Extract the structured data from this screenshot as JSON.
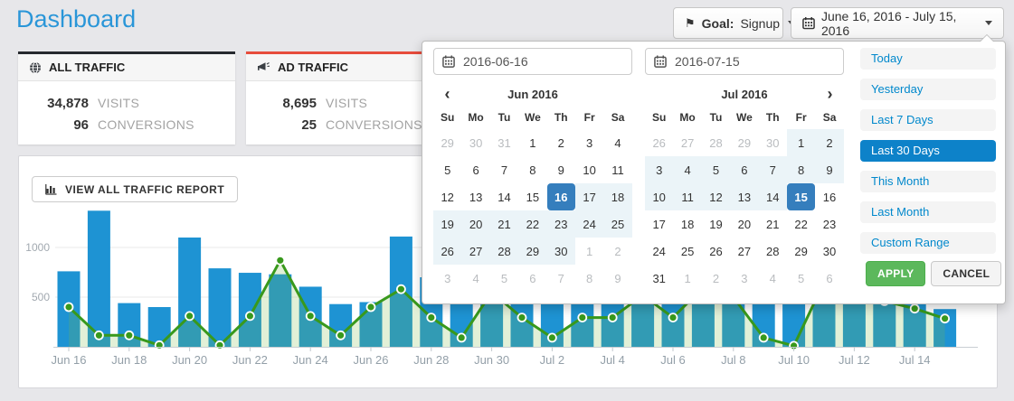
{
  "page": {
    "title": "Dashboard"
  },
  "toolbar": {
    "goal_label": "Goal:",
    "goal_value": "Signup",
    "date_range": "June 16, 2016 - July 15, 2016"
  },
  "icons": {
    "flag": "⚑",
    "prev_arrow": "‹",
    "next_arrow": "›"
  },
  "cards": [
    {
      "title": "ALL TRAFFIC",
      "accent": "#26292e",
      "stats": [
        {
          "value": "34,878",
          "label": "VISITS"
        },
        {
          "value": "96",
          "label": "CONVERSIONS"
        }
      ]
    },
    {
      "title": "AD TRAFFIC",
      "accent": "#e74c3c",
      "stats": [
        {
          "value": "8,695",
          "label": "VISITS"
        },
        {
          "value": "25",
          "label": "CONVERSIONS"
        }
      ]
    }
  ],
  "report_button": {
    "label": "VIEW ALL TRAFFIC REPORT"
  },
  "datepicker": {
    "start_input": "2016-06-16",
    "end_input": "2016-07-15",
    "weekdays": [
      "Su",
      "Mo",
      "Tu",
      "We",
      "Th",
      "Fr",
      "Sa"
    ],
    "months": [
      {
        "title": "Jun 2016",
        "prev": "‹",
        "next": "",
        "days": [
          "29|off",
          "30|off",
          "31|off",
          "1|",
          "2|",
          "3|",
          "4|",
          "5|",
          "6|",
          "7|",
          "8|",
          "9|",
          "10|",
          "11|",
          "12|",
          "13|",
          "14|",
          "15|",
          "16|sel",
          "17|in",
          "18|in",
          "19|in",
          "20|in",
          "21|in",
          "22|in",
          "23|in",
          "24|in",
          "25|in",
          "26|in",
          "27|in",
          "28|in",
          "29|in",
          "30|in",
          "1|off",
          "2|off",
          "3|off",
          "4|off",
          "5|off",
          "6|off",
          "7|off",
          "8|off",
          "9|off"
        ]
      },
      {
        "title": "Jul 2016",
        "prev": "",
        "next": "›",
        "days": [
          "26|off",
          "27|off",
          "28|off",
          "29|off",
          "30|off",
          "1|in",
          "2|in",
          "3|in",
          "4|in",
          "5|in",
          "6|in",
          "7|in",
          "8|in",
          "9|in",
          "10|in",
          "11|in",
          "12|in",
          "13|in",
          "14|in",
          "15|sel",
          "16|",
          "17|",
          "18|",
          "19|",
          "20|",
          "21|",
          "22|",
          "23|",
          "24|",
          "25|",
          "26|",
          "27|",
          "28|",
          "29|",
          "30|",
          "31|",
          "1|off",
          "2|off",
          "3|off",
          "4|off",
          "5|off",
          "6|off"
        ]
      }
    ],
    "ranges": [
      "Today",
      "Yesterday",
      "Last 7 Days",
      "Last 30 Days",
      "This Month",
      "Last Month",
      "Custom Range"
    ],
    "active_range": "Last 30 Days",
    "apply_label": "APPLY",
    "cancel_label": "CANCEL",
    "colors": {
      "selected_day": "#357ebd",
      "in_range": "#ebf4f8",
      "active_range": "#0d82c9"
    }
  },
  "chart_data": {
    "type": "bar",
    "x": [
      "Jun 16",
      "Jun 17",
      "Jun 18",
      "Jun 19",
      "Jun 20",
      "Jun 21",
      "Jun 22",
      "Jun 23",
      "Jun 24",
      "Jun 25",
      "Jun 26",
      "Jun 27",
      "Jun 28",
      "Jun 29",
      "Jun 30",
      "Jul 1",
      "Jul 2",
      "Jul 3",
      "Jul 4",
      "Jul 5",
      "Jul 6",
      "Jul 7",
      "Jul 8",
      "Jul 9",
      "Jul 10",
      "Jul 11",
      "Jul 12",
      "Jul 13",
      "Jul 14",
      "Jul 15"
    ],
    "tick_every": 2,
    "series": [
      {
        "name": "visits",
        "type": "bar",
        "color": "#1e93d3",
        "values": [
          760,
          1370,
          440,
          400,
          1100,
          790,
          745,
          730,
          605,
          430,
          450,
          1110,
          700,
          650,
          800,
          620,
          560,
          700,
          760,
          880,
          660,
          720,
          800,
          620,
          560,
          700,
          880,
          840,
          980,
          380
        ]
      },
      {
        "name": "conversions",
        "type": "line",
        "color": "#38991c",
        "values": [
          400,
          115,
          115,
          15,
          310,
          15,
          310,
          870,
          310,
          115,
          400,
          580,
          295,
          92,
          550,
          295,
          92,
          295,
          295,
          520,
          295,
          600,
          500,
          92,
          10,
          650,
          520,
          460,
          385,
          285
        ]
      }
    ],
    "area_fill": "rgba(125,185,75,0.22)",
    "ylim": [
      0,
      1500
    ],
    "yticks": [
      500,
      1000
    ],
    "grid": true,
    "legend": "none",
    "occlusion_note": "values for Jun 28 - Jul 14 estimated; region hidden behind date picker popup"
  }
}
